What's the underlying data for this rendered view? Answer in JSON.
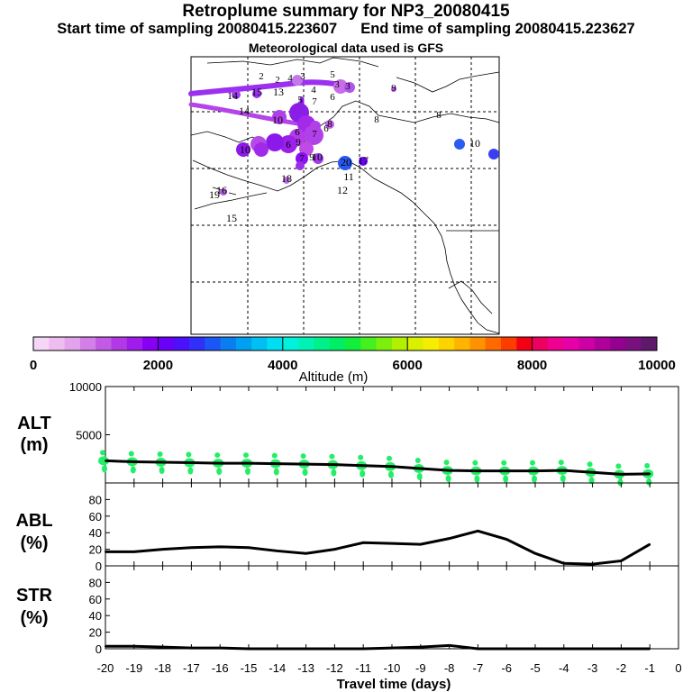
{
  "header": {
    "title": "Retroplume summary for NP3_20080415",
    "start_sampling": "Start time of sampling 20080415.223607",
    "end_sampling": "End time of sampling 20080415.223627",
    "met_data": "Meteorological data used is GFS"
  },
  "colorbar": {
    "ticks": [
      "0",
      "2000",
      "4000",
      "6000",
      "8000",
      "10000"
    ],
    "label": "Altitude (m)",
    "colors": [
      "#f6d6f6",
      "#eebdf0",
      "#e3a3ec",
      "#d47ee8",
      "#c35ae6",
      "#b23ae6",
      "#9f1ceb",
      "#8800f3",
      "#6a00f8",
      "#4d10fa",
      "#3030f8",
      "#1b57f4",
      "#0a7ef0",
      "#00a0f0",
      "#00c0f2",
      "#00dff2",
      "#00f2dc",
      "#00f2b4",
      "#00f08a",
      "#00ee64",
      "#12ee3c",
      "#46ef1e",
      "#7cf00c",
      "#b0f000",
      "#daf000",
      "#f6ee00",
      "#fdd400",
      "#feb400",
      "#fe9200",
      "#fe6a00",
      "#fd3c00",
      "#f40014",
      "#ee0060",
      "#f00090",
      "#e600a8",
      "#cc00a6",
      "#b0009c",
      "#940090",
      "#781080",
      "#5e1a6a"
    ]
  },
  "map": {
    "labels": [
      {
        "t": "2"
      },
      {
        "t": "2"
      },
      {
        "t": "4"
      },
      {
        "t": "3"
      },
      {
        "t": "5"
      },
      {
        "t": "3"
      },
      {
        "t": "3"
      },
      {
        "t": "4"
      },
      {
        "t": "6"
      },
      {
        "t": "14"
      },
      {
        "t": "15"
      },
      {
        "t": "13"
      },
      {
        "t": "14"
      },
      {
        "t": "10"
      },
      {
        "t": "5"
      },
      {
        "t": "7"
      },
      {
        "t": "8"
      },
      {
        "t": "6"
      },
      {
        "t": "6"
      },
      {
        "t": "9"
      },
      {
        "t": "10"
      },
      {
        "t": "7"
      },
      {
        "t": "6"
      },
      {
        "t": "9"
      },
      {
        "t": "8"
      },
      {
        "t": "10"
      },
      {
        "t": "20"
      },
      {
        "t": "17"
      },
      {
        "t": "11"
      },
      {
        "t": "12"
      },
      {
        "t": "18"
      },
      {
        "t": "15"
      },
      {
        "t": "16"
      },
      {
        "t": "19"
      },
      {
        "t": "10"
      },
      {
        "t": "8"
      },
      {
        "t": "9"
      },
      {
        "t": "7"
      }
    ]
  },
  "panels": {
    "alt": {
      "line1": "ALT",
      "line2": "(m)"
    },
    "abl": {
      "line1": "ABL",
      "line2": "(%)"
    },
    "str": {
      "line1": "STR",
      "line2": "(%)"
    }
  },
  "x_axis_label": "Travel time (days)",
  "chart_data": [
    {
      "type": "line",
      "title": "ALT",
      "ylabel": "ALT (m)",
      "xlabel": "Travel time (days)",
      "x": [
        -20,
        -19,
        -18,
        -17,
        -16,
        -15,
        -14,
        -13,
        -12,
        -11,
        -10,
        -9,
        -8,
        -7,
        -6,
        -5,
        -4,
        -3,
        -2,
        -1
      ],
      "x_tick_labels": [
        "-20",
        "-19",
        "-18",
        "-17",
        "-16",
        "-15",
        "-14",
        "-13",
        "-12",
        "-11",
        "-10",
        "-9",
        "-8",
        "-7",
        "-6",
        "-5",
        "-4",
        "-3",
        "-2",
        "-1",
        "0"
      ],
      "xlim": [
        -20,
        0
      ],
      "ylim": [
        0,
        10000
      ],
      "y_ticks": [
        "5000",
        "10000"
      ],
      "values": [
        2300,
        2200,
        2150,
        2100,
        2050,
        2050,
        2000,
        1950,
        1900,
        1800,
        1700,
        1500,
        1300,
        1250,
        1250,
        1250,
        1300,
        1100,
        900,
        950
      ],
      "spread_color": "#22ee66"
    },
    {
      "type": "line",
      "title": "ABL",
      "ylabel": "ABL (%)",
      "x": [
        -20,
        -19,
        -18,
        -17,
        -16,
        -15,
        -14,
        -13,
        -12,
        -11,
        -10,
        -9,
        -8,
        -7,
        -6,
        -5,
        -4,
        -3,
        -2,
        -1
      ],
      "xlim": [
        -20,
        0
      ],
      "ylim": [
        0,
        100
      ],
      "y_ticks": [
        "0",
        "20",
        "40",
        "60",
        "80"
      ],
      "values": [
        17,
        17,
        20,
        22,
        23,
        22,
        18,
        15,
        20,
        28,
        27,
        26,
        33,
        42,
        32,
        15,
        3,
        2,
        6,
        26
      ]
    },
    {
      "type": "line",
      "title": "STR",
      "ylabel": "STR (%)",
      "x": [
        -20,
        -19,
        -18,
        -17,
        -16,
        -15,
        -14,
        -13,
        -12,
        -11,
        -10,
        -9,
        -8,
        -7,
        -6,
        -5,
        -4,
        -3,
        -2,
        -1
      ],
      "xlim": [
        -20,
        0
      ],
      "ylim": [
        0,
        100
      ],
      "y_ticks": [
        "0",
        "20",
        "40",
        "60",
        "80"
      ],
      "values": [
        3,
        3,
        2,
        1,
        1,
        0,
        0,
        0,
        0,
        0,
        1,
        2,
        4,
        0,
        0,
        0,
        0,
        0,
        0,
        0
      ]
    }
  ]
}
